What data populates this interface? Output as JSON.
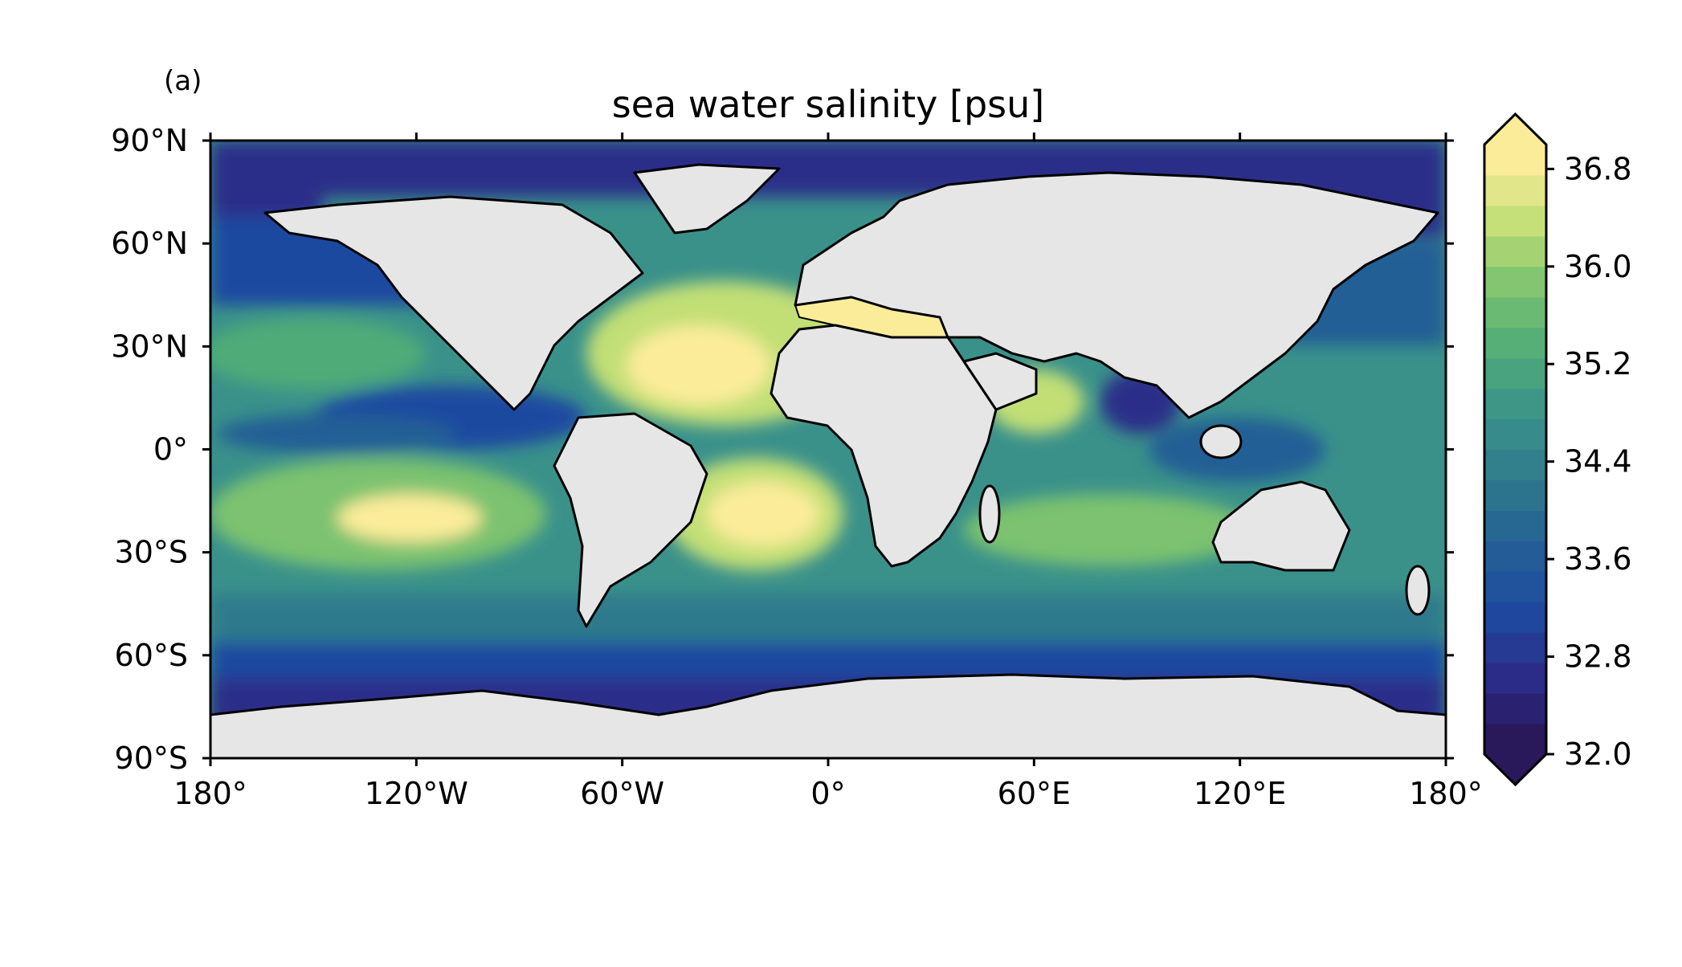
{
  "panel_label": "(a)",
  "title": "sea water salinity [psu]",
  "map": {
    "projection": "plate carree",
    "extent_lon": [
      -180,
      180
    ],
    "extent_lat": [
      -90,
      90
    ],
    "x_ticks": [
      {
        "lon": -180,
        "label": "180°"
      },
      {
        "lon": -120,
        "label": "120°W"
      },
      {
        "lon": -60,
        "label": "60°W"
      },
      {
        "lon": 0,
        "label": "0°"
      },
      {
        "lon": 60,
        "label": "60°E"
      },
      {
        "lon": 120,
        "label": "120°E"
      },
      {
        "lon": 180,
        "label": "180°"
      }
    ],
    "y_ticks": [
      {
        "lat": 90,
        "label": "90°N"
      },
      {
        "lat": 60,
        "label": "60°N"
      },
      {
        "lat": 30,
        "label": "30°N"
      },
      {
        "lat": 0,
        "label": "0°"
      },
      {
        "lat": -30,
        "label": "30°S"
      },
      {
        "lat": -60,
        "label": "60°S"
      },
      {
        "lat": -90,
        "label": "90°S"
      }
    ],
    "land_color": "#e6e6e6",
    "coastline_color": "#000000"
  },
  "colorbar": {
    "vmin": 32.0,
    "vmax": 37.0,
    "levels": 20,
    "extend": "both",
    "ticks": [
      32.0,
      32.8,
      33.6,
      34.4,
      35.2,
      36.0,
      36.8
    ],
    "tick_labels": [
      "32.0",
      "32.8",
      "33.6",
      "34.4",
      "35.2",
      "36.0",
      "36.8"
    ],
    "colormap_stops": [
      "#29195a",
      "#2b2d89",
      "#1f4aa0",
      "#245f95",
      "#2e7a8c",
      "#3a918a",
      "#4fab78",
      "#7cc270",
      "#c2df76",
      "#fbec9a"
    ]
  }
}
